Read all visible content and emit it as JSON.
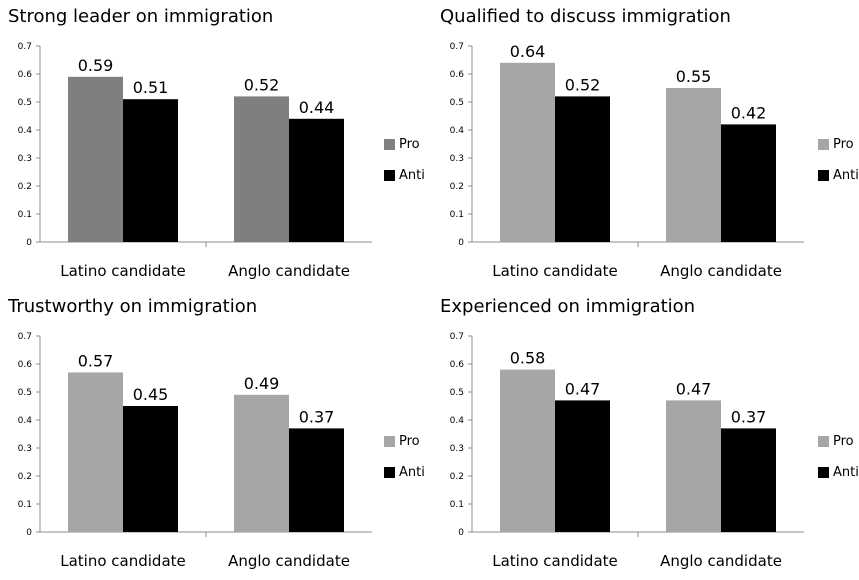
{
  "chart_data": [
    {
      "type": "bar",
      "title": "Strong leader on immigration",
      "categories": [
        "Latino candidate",
        "Anglo candidate"
      ],
      "series": [
        {
          "name": "Pro",
          "values": [
            0.59,
            0.52
          ],
          "color": "#7f7f7f"
        },
        {
          "name": "Anti",
          "values": [
            0.51,
            0.44
          ],
          "color": "#000000"
        }
      ],
      "ylim": [
        0,
        0.7
      ],
      "yticks": [
        0,
        0.1,
        0.2,
        0.3,
        0.4,
        0.5,
        0.6,
        0.7
      ],
      "ytick_labels": [
        "0",
        "0.1",
        "0.2",
        "0.3",
        "0.4",
        "0.5",
        "0.6",
        "0.7"
      ],
      "legend_position": "right",
      "grid": false
    },
    {
      "type": "bar",
      "title": "Qualified to discuss immigration",
      "categories": [
        "Latino candidate",
        "Anglo candidate"
      ],
      "series": [
        {
          "name": "Pro",
          "values": [
            0.64,
            0.55
          ],
          "color": "#a6a6a6"
        },
        {
          "name": "Anti",
          "values": [
            0.52,
            0.42
          ],
          "color": "#000000"
        }
      ],
      "ylim": [
        0,
        0.7
      ],
      "yticks": [
        0,
        0.1,
        0.2,
        0.3,
        0.4,
        0.5,
        0.6,
        0.7
      ],
      "ytick_labels": [
        "0",
        "0.1",
        "0.2",
        "0.3",
        "0.4",
        "0.5",
        "0.6",
        "0.7"
      ],
      "legend_position": "right",
      "grid": false
    },
    {
      "type": "bar",
      "title": "Trustworthy on immigration",
      "categories": [
        "Latino candidate",
        "Anglo candidate"
      ],
      "series": [
        {
          "name": "Pro",
          "values": [
            0.57,
            0.49
          ],
          "color": "#a6a6a6"
        },
        {
          "name": "Anti",
          "values": [
            0.45,
            0.37
          ],
          "color": "#000000"
        }
      ],
      "ylim": [
        0,
        0.7
      ],
      "yticks": [
        0,
        0.1,
        0.2,
        0.3,
        0.4,
        0.5,
        0.6,
        0.7
      ],
      "ytick_labels": [
        "0",
        "0.1",
        "0.2",
        "0.3",
        "0.4",
        "0.5",
        "0.6",
        "0.7"
      ],
      "legend_position": "right",
      "grid": false
    },
    {
      "type": "bar",
      "title": "Experienced on immigration",
      "categories": [
        "Latino candidate",
        "Anglo candidate"
      ],
      "series": [
        {
          "name": "Pro",
          "values": [
            0.58,
            0.47
          ],
          "color": "#a6a6a6"
        },
        {
          "name": "Anti",
          "values": [
            0.47,
            0.37
          ],
          "color": "#000000"
        }
      ],
      "ylim": [
        0,
        0.7
      ],
      "yticks": [
        0,
        0.1,
        0.2,
        0.3,
        0.4,
        0.5,
        0.6,
        0.7
      ],
      "ytick_labels": [
        "0",
        "0.1",
        "0.2",
        "0.3",
        "0.4",
        "0.5",
        "0.6",
        "0.7"
      ],
      "legend_position": "right",
      "grid": false
    }
  ]
}
